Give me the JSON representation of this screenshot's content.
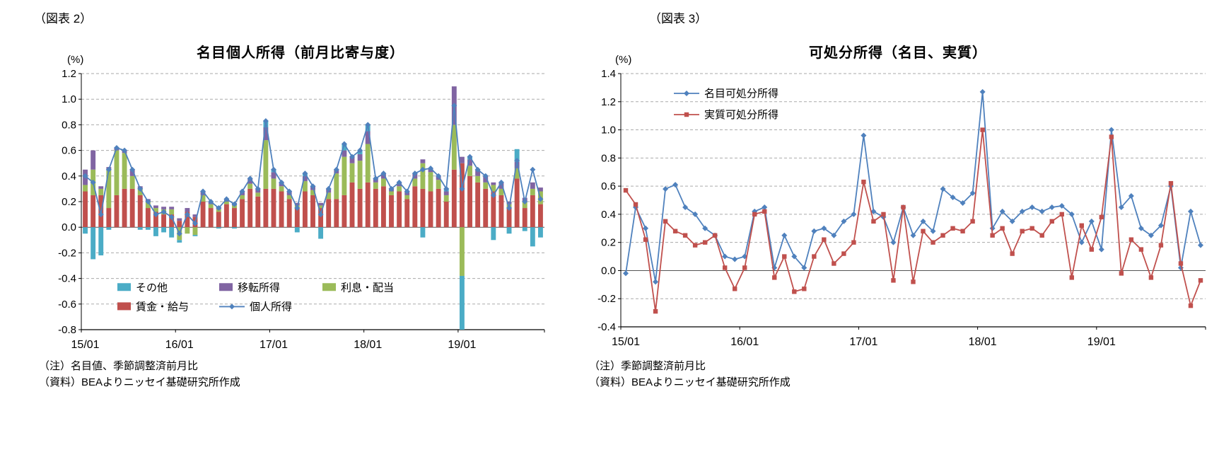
{
  "figure2": {
    "tag": "（図表 2）",
    "notes": [
      "（注）名目値、季節調整済前月比",
      "（資料）BEAよりニッセイ基礎研究所作成"
    ]
  },
  "figure3": {
    "tag": "（図表 3）",
    "notes": [
      "（注）季節調整済前月比",
      "（資料）BEAよりニッセイ基礎研究所作成"
    ]
  },
  "colors": {
    "blue": "#4F81BD",
    "red": "#C0504D",
    "green": "#9BBB59",
    "purple": "#8064A2",
    "cyan": "#4BACC6"
  },
  "chart_data": [
    {
      "type": "bar",
      "subtype": "stacked-bars-with-line",
      "title": "名目個人所得（前月比寄与度）",
      "xlabel": "",
      "ylabel": "(%)",
      "ylim": [
        -0.8,
        1.2
      ],
      "ytick_step": 0.2,
      "grid": "dashed-horizontal",
      "x_tick_indices": [
        0,
        12,
        24,
        36,
        48
      ],
      "x_tick_labels": [
        "15/01",
        "16/01",
        "17/01",
        "18/01",
        "19/01"
      ],
      "categories": [
        "15/01",
        "15/02",
        "15/03",
        "15/04",
        "15/05",
        "15/06",
        "15/07",
        "15/08",
        "15/09",
        "15/10",
        "15/11",
        "15/12",
        "16/01",
        "16/02",
        "16/03",
        "16/04",
        "16/05",
        "16/06",
        "16/07",
        "16/08",
        "16/09",
        "16/10",
        "16/11",
        "16/12",
        "17/01",
        "17/02",
        "17/03",
        "17/04",
        "17/05",
        "17/06",
        "17/07",
        "17/08",
        "17/09",
        "17/10",
        "17/11",
        "17/12",
        "18/01",
        "18/02",
        "18/03",
        "18/04",
        "18/05",
        "18/06",
        "18/07",
        "18/08",
        "18/09",
        "18/10",
        "18/11",
        "18/12",
        "19/01",
        "19/02",
        "19/03",
        "19/04",
        "19/05",
        "19/06",
        "19/07",
        "19/08",
        "19/09",
        "19/10",
        "19/11"
      ],
      "bar_series": [
        {
          "name": "賃金・給与",
          "color": "#C0504D",
          "values": [
            0.28,
            0.25,
            0.25,
            0.15,
            0.25,
            0.3,
            0.3,
            0.25,
            0.15,
            0.12,
            0.1,
            0.1,
            0.05,
            0.12,
            0.08,
            0.2,
            0.15,
            0.12,
            0.18,
            0.15,
            0.22,
            0.3,
            0.24,
            0.3,
            0.3,
            0.28,
            0.22,
            0.15,
            0.28,
            0.25,
            0.15,
            0.22,
            0.22,
            0.25,
            0.35,
            0.3,
            0.35,
            0.3,
            0.32,
            0.25,
            0.28,
            0.22,
            0.32,
            0.3,
            0.28,
            0.3,
            0.2,
            0.45,
            0.5,
            0.4,
            0.35,
            0.3,
            0.28,
            0.25,
            0.15,
            0.38,
            0.15,
            0.25,
            0.18
          ]
        },
        {
          "name": "利息・配当",
          "color": "#9BBB59",
          "values": [
            0.05,
            0.2,
            0.05,
            0.3,
            0.35,
            0.28,
            0.1,
            0.05,
            0.05,
            0.03,
            0.04,
            0.04,
            -0.1,
            -0.05,
            -0.06,
            0.05,
            0.03,
            0.02,
            0.02,
            0.02,
            0.03,
            0.04,
            0.03,
            0.38,
            0.08,
            0.04,
            0.03,
            0.02,
            0.08,
            0.04,
            0.02,
            0.05,
            0.2,
            0.3,
            0.15,
            0.22,
            0.3,
            0.05,
            0.06,
            0.03,
            0.04,
            0.03,
            0.06,
            0.2,
            0.15,
            0.07,
            0.05,
            0.35,
            -0.38,
            0.08,
            0.05,
            0.05,
            0.05,
            0.05,
            0.03,
            0.08,
            0.05,
            0.05,
            0.1
          ]
        },
        {
          "name": "移転所得",
          "color": "#8064A2",
          "values": [
            0.12,
            0.15,
            0.02,
            0.02,
            0.02,
            0.02,
            0.05,
            0.02,
            0.02,
            0.02,
            0.02,
            0.02,
            0.02,
            0.03,
            0.02,
            0.03,
            0.02,
            0.02,
            0.02,
            0.02,
            0.03,
            0.04,
            0.03,
            0.1,
            0.05,
            0.03,
            0.03,
            0.02,
            0.04,
            0.03,
            0.02,
            0.03,
            0.03,
            0.05,
            0.05,
            0.05,
            0.1,
            0.03,
            0.04,
            0.02,
            0.03,
            0.03,
            0.04,
            0.03,
            0.03,
            0.03,
            0.03,
            0.3,
            0.05,
            0.05,
            0.05,
            0.05,
            0.02,
            0.05,
            0.02,
            0.05,
            0.03,
            0.05,
            0.03
          ]
        },
        {
          "name": "その他",
          "color": "#4BACC6",
          "values": [
            -0.05,
            -0.25,
            -0.22,
            -0.02,
            0.0,
            0.0,
            0.0,
            -0.02,
            -0.02,
            -0.07,
            -0.04,
            -0.08,
            -0.02,
            0.0,
            -0.01,
            0.0,
            0.0,
            -0.01,
            0.0,
            -0.01,
            0.0,
            0.0,
            0.0,
            0.05,
            0.02,
            0.0,
            0.0,
            -0.04,
            0.02,
            0.0,
            -0.09,
            0.0,
            0.0,
            0.05,
            0.0,
            0.03,
            0.05,
            0.0,
            0.0,
            0.0,
            0.0,
            0.0,
            0.0,
            -0.08,
            0.0,
            0.0,
            0.02,
            0.0,
            -0.42,
            0.02,
            0.0,
            0.0,
            -0.1,
            0.0,
            -0.05,
            0.1,
            -0.03,
            -0.15,
            -0.08
          ]
        }
      ],
      "line_series": [
        {
          "name": "個人所得",
          "color": "#4F81BD",
          "marker": "diamond",
          "values": [
            0.4,
            0.35,
            0.1,
            0.45,
            0.62,
            0.6,
            0.45,
            0.3,
            0.2,
            0.1,
            0.12,
            0.08,
            -0.05,
            0.1,
            0.03,
            0.28,
            0.2,
            0.15,
            0.22,
            0.18,
            0.28,
            0.38,
            0.3,
            0.83,
            0.45,
            0.35,
            0.28,
            0.15,
            0.42,
            0.32,
            0.1,
            0.3,
            0.45,
            0.65,
            0.55,
            0.6,
            0.8,
            0.38,
            0.42,
            0.3,
            0.35,
            0.28,
            0.42,
            0.45,
            0.46,
            0.4,
            0.3,
            0.95,
            0.3,
            0.55,
            0.45,
            0.4,
            0.25,
            0.35,
            0.15,
            0.52,
            0.2,
            0.45,
            0.22
          ]
        }
      ],
      "legend": {
        "position": "inside-bottom",
        "items": [
          "その他",
          "移転所得",
          "利息・配当",
          "賃金・給与",
          "個人所得"
        ]
      }
    },
    {
      "type": "line",
      "title": "可処分所得（名目、実質）",
      "xlabel": "",
      "ylabel": "(%)",
      "ylim": [
        -0.4,
        1.4
      ],
      "ytick_step": 0.2,
      "grid": "dashed-horizontal",
      "x_tick_indices": [
        0,
        12,
        24,
        36,
        48
      ],
      "x_tick_labels": [
        "15/01",
        "16/01",
        "17/01",
        "18/01",
        "19/01"
      ],
      "categories": [
        "15/01",
        "15/02",
        "15/03",
        "15/04",
        "15/05",
        "15/06",
        "15/07",
        "15/08",
        "15/09",
        "15/10",
        "15/11",
        "15/12",
        "16/01",
        "16/02",
        "16/03",
        "16/04",
        "16/05",
        "16/06",
        "16/07",
        "16/08",
        "16/09",
        "16/10",
        "16/11",
        "16/12",
        "17/01",
        "17/02",
        "17/03",
        "17/04",
        "17/05",
        "17/06",
        "17/07",
        "17/08",
        "17/09",
        "17/10",
        "17/11",
        "17/12",
        "18/01",
        "18/02",
        "18/03",
        "18/04",
        "18/05",
        "18/06",
        "18/07",
        "18/08",
        "18/09",
        "18/10",
        "18/11",
        "18/12",
        "19/01",
        "19/02",
        "19/03",
        "19/04",
        "19/05",
        "19/06",
        "19/07",
        "19/08",
        "19/09",
        "19/10",
        "19/11"
      ],
      "line_series": [
        {
          "name": "名目可処分所得",
          "color": "#4F81BD",
          "marker": "diamond",
          "values": [
            -0.02,
            0.45,
            0.3,
            -0.08,
            0.58,
            0.61,
            0.45,
            0.4,
            0.3,
            0.25,
            0.1,
            0.08,
            0.1,
            0.42,
            0.45,
            0.02,
            0.25,
            0.1,
            0.02,
            0.28,
            0.3,
            0.25,
            0.35,
            0.4,
            0.96,
            0.42,
            0.38,
            0.2,
            0.45,
            0.25,
            0.35,
            0.28,
            0.58,
            0.52,
            0.48,
            0.55,
            1.27,
            0.3,
            0.42,
            0.35,
            0.42,
            0.45,
            0.42,
            0.45,
            0.46,
            0.4,
            0.2,
            0.35,
            0.15,
            1.0,
            0.45,
            0.53,
            0.3,
            0.25,
            0.32,
            0.6,
            0.02,
            0.42,
            0.18
          ]
        },
        {
          "name": "実質可処分所得",
          "color": "#C0504D",
          "marker": "square",
          "values": [
            0.57,
            0.47,
            0.22,
            -0.29,
            0.35,
            0.28,
            0.25,
            0.18,
            0.2,
            0.25,
            0.02,
            -0.13,
            0.02,
            0.4,
            0.42,
            -0.05,
            0.1,
            -0.15,
            -0.13,
            0.1,
            0.22,
            0.05,
            0.12,
            0.2,
            0.63,
            0.35,
            0.4,
            -0.07,
            0.45,
            -0.08,
            0.28,
            0.2,
            0.25,
            0.3,
            0.28,
            0.35,
            1.0,
            0.25,
            0.3,
            0.12,
            0.28,
            0.3,
            0.25,
            0.35,
            0.4,
            -0.05,
            0.32,
            0.15,
            0.38,
            0.95,
            -0.02,
            0.22,
            0.15,
            -0.05,
            0.18,
            0.62,
            0.05,
            -0.25,
            -0.07
          ]
        }
      ],
      "legend": {
        "position": "inside-top",
        "items": [
          "名目可処分所得",
          "実質可処分所得"
        ]
      }
    }
  ]
}
